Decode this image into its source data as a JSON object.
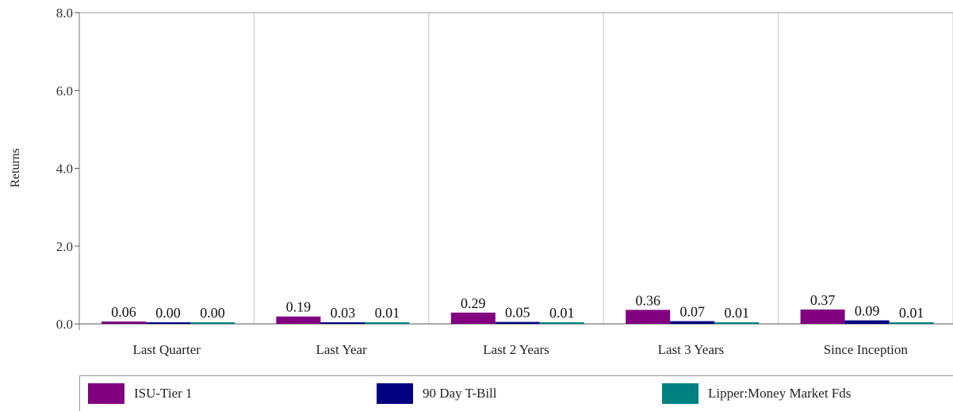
{
  "chart_data": {
    "type": "bar",
    "ylabel": "Returns",
    "xlabel": "",
    "ylim": [
      0,
      8
    ],
    "yticks": [
      "0.0",
      "2.0",
      "4.0",
      "6.0",
      "8.0"
    ],
    "categories": [
      "Last Quarter",
      "Last Year",
      "Last 2 Years",
      "Last 3 Years",
      "Since Inception"
    ],
    "series": [
      {
        "name": "ISU-Tier 1",
        "color": "#800080",
        "values": [
          0.06,
          0.19,
          0.29,
          0.36,
          0.37
        ],
        "labels": [
          "0.06",
          "0.19",
          "0.29",
          "0.36",
          "0.37"
        ]
      },
      {
        "name": "90 Day T-Bill",
        "color": "#000080",
        "values": [
          0.0,
          0.03,
          0.05,
          0.07,
          0.09
        ],
        "labels": [
          "0.00",
          "0.03",
          "0.05",
          "0.07",
          "0.09"
        ]
      },
      {
        "name": "Lipper:Money Market Fds",
        "color": "#008080",
        "values": [
          0.0,
          0.01,
          0.01,
          0.01,
          0.01
        ],
        "labels": [
          "0.00",
          "0.01",
          "0.01",
          "0.01",
          "0.01"
        ]
      }
    ],
    "grid": true,
    "legend": "bottom"
  }
}
